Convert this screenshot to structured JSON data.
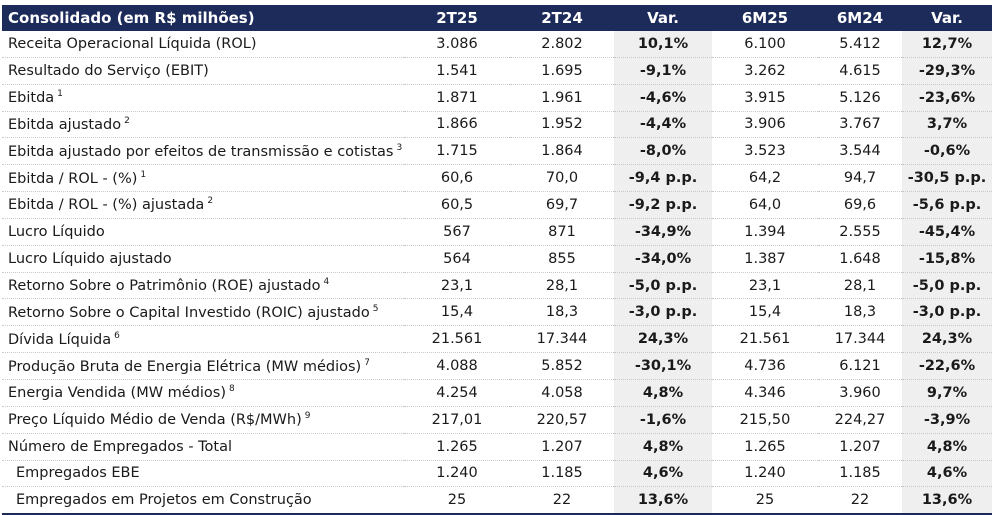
{
  "header": {
    "label": "Consolidado (em R$ milhões)",
    "col_2t25": "2T25",
    "col_2t24": "2T24",
    "col_var_q": "Var.",
    "col_6m25": "6M25",
    "col_6m24": "6M24",
    "col_var_s": "Var."
  },
  "rows": [
    {
      "label": "Receita Operacional Líquida (ROL)",
      "note": "",
      "v2t25": "3.086",
      "v2t24": "2.802",
      "varq": "10,1%",
      "v6m25": "6.100",
      "v6m24": "5.412",
      "vars": "12,7%"
    },
    {
      "label": "Resultado do Serviço (EBIT)",
      "note": "",
      "v2t25": "1.541",
      "v2t24": "1.695",
      "varq": "-9,1%",
      "v6m25": "3.262",
      "v6m24": "4.615",
      "vars": "-29,3%"
    },
    {
      "label": "Ebitda",
      "note": "1",
      "v2t25": "1.871",
      "v2t24": "1.961",
      "varq": "-4,6%",
      "v6m25": "3.915",
      "v6m24": "5.126",
      "vars": "-23,6%"
    },
    {
      "label": "Ebitda ajustado",
      "note": "2",
      "v2t25": "1.866",
      "v2t24": "1.952",
      "varq": "-4,4%",
      "v6m25": "3.906",
      "v6m24": "3.767",
      "vars": "3,7%"
    },
    {
      "label": "Ebitda ajustado por efeitos de transmissão e cotistas",
      "note": "3",
      "v2t25": "1.715",
      "v2t24": "1.864",
      "varq": "-8,0%",
      "v6m25": "3.523",
      "v6m24": "3.544",
      "vars": "-0,6%"
    },
    {
      "label": "Ebitda / ROL - (%)",
      "note": "1",
      "v2t25": "60,6",
      "v2t24": "70,0",
      "varq": "-9,4 p.p.",
      "v6m25": "64,2",
      "v6m24": "94,7",
      "vars": "-30,5 p.p."
    },
    {
      "label": "Ebitda / ROL - (%) ajustada",
      "note": "2",
      "v2t25": "60,5",
      "v2t24": "69,7",
      "varq": "-9,2 p.p.",
      "v6m25": "64,0",
      "v6m24": "69,6",
      "vars": "-5,6 p.p."
    },
    {
      "label": "Lucro Líquido",
      "note": "",
      "v2t25": "567",
      "v2t24": "871",
      "varq": "-34,9%",
      "v6m25": "1.394",
      "v6m24": "2.555",
      "vars": "-45,4%"
    },
    {
      "label": "Lucro Líquido ajustado",
      "note": "",
      "v2t25": "564",
      "v2t24": "855",
      "varq": "-34,0%",
      "v6m25": "1.387",
      "v6m24": "1.648",
      "vars": "-15,8%"
    },
    {
      "label": "Retorno Sobre o Patrimônio (ROE) ajustado",
      "note": "4",
      "v2t25": "23,1",
      "v2t24": "28,1",
      "varq": "-5,0 p.p.",
      "v6m25": "23,1",
      "v6m24": "28,1",
      "vars": "-5,0 p.p."
    },
    {
      "label": "Retorno Sobre o Capital Investido (ROIC) ajustado",
      "note": "5",
      "v2t25": "15,4",
      "v2t24": "18,3",
      "varq": "-3,0 p.p.",
      "v6m25": "15,4",
      "v6m24": "18,3",
      "vars": "-3,0 p.p."
    },
    {
      "label": "Dívida Líquida",
      "note": "6",
      "v2t25": "21.561",
      "v2t24": "17.344",
      "varq": "24,3%",
      "v6m25": "21.561",
      "v6m24": "17.344",
      "vars": "24,3%"
    },
    {
      "label": "Produção Bruta de Energia Elétrica (MW médios)",
      "note": "7",
      "v2t25": "4.088",
      "v2t24": "5.852",
      "varq": "-30,1%",
      "v6m25": "4.736",
      "v6m24": "6.121",
      "vars": "-22,6%"
    },
    {
      "label": "Energia Vendida (MW médios)",
      "note": "8",
      "v2t25": "4.254",
      "v2t24": "4.058",
      "varq": "4,8%",
      "v6m25": "4.346",
      "v6m24": "3.960",
      "vars": "9,7%"
    },
    {
      "label": "Preço Líquido Médio de Venda (R$/MWh)",
      "note": "9",
      "v2t25": "217,01",
      "v2t24": "220,57",
      "varq": "-1,6%",
      "v6m25": "215,50",
      "v6m24": "224,27",
      "vars": "-3,9%"
    },
    {
      "label": "Número de Empregados - Total",
      "note": "",
      "v2t25": "1.265",
      "v2t24": "1.207",
      "varq": "4,8%",
      "v6m25": "1.265",
      "v6m24": "1.207",
      "vars": "4,8%"
    },
    {
      "label": "Empregados EBE",
      "note": "",
      "sub": true,
      "v2t25": "1.240",
      "v2t24": "1.185",
      "varq": "4,6%",
      "v6m25": "1.240",
      "v6m24": "1.185",
      "vars": "4,6%"
    },
    {
      "label": "Empregados em Projetos em Construção",
      "note": "",
      "sub": true,
      "v2t25": "25",
      "v2t24": "22",
      "varq": "13,6%",
      "v6m25": "25",
      "v6m24": "22",
      "vars": "13,6%"
    }
  ]
}
